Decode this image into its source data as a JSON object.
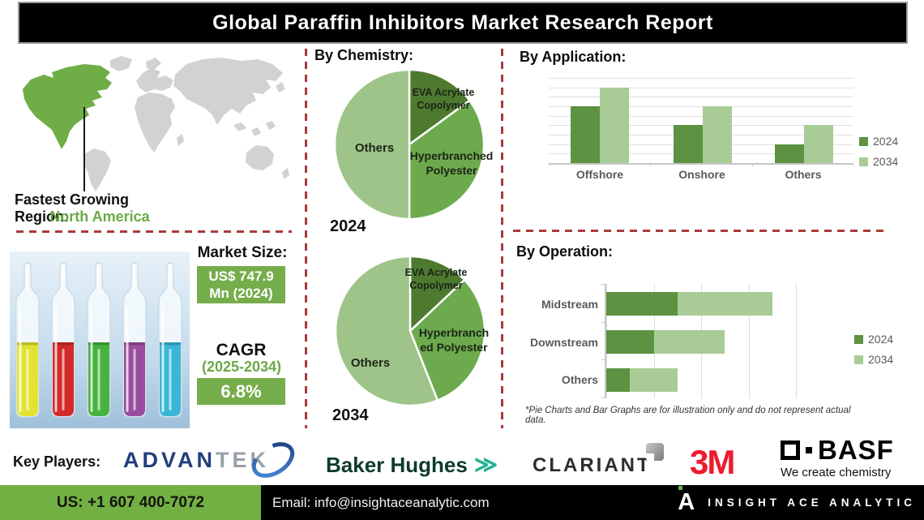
{
  "header": {
    "title": "Global Paraffin Inhibitors Market Research Report"
  },
  "map": {
    "region_label": "Fastest Growing Region:",
    "region_value": "North America"
  },
  "market": {
    "size_label": "Market Size:",
    "size_line1": "US$ 747.9",
    "size_line2": "Mn (2024)",
    "cagr_label": "CAGR",
    "cagr_period": "(2025-2034)",
    "cagr_value": "6.8%"
  },
  "sections": {
    "chemistry_title": "By Chemistry:",
    "application_title": "By Application:",
    "operation_title": "By Operation:"
  },
  "disclaimer": "*Pie Charts and Bar Graphs are for illustration only and do not represent actual data.",
  "key_players": {
    "label": "Key Players:",
    "advantek_part1": "ADVAN",
    "advantek_part2": "TEK",
    "baker_hughes": "Baker Hughes",
    "baker_swoosh": "≫",
    "clariant": "CLARIANT",
    "threem": "3M",
    "basf": "BASF",
    "basf_tagline": "We create chemistry"
  },
  "footer": {
    "phone": "US: +1 607 400-7072",
    "email": "Email: info@insightaceanalytic.com",
    "brand_letter": "A",
    "brand": "INSIGHT ACE ANALYTIC"
  },
  "colors": {
    "dash_red": "#a93b3b",
    "na_green": "#6fae46",
    "map_gray": "#d2d2d2",
    "accent_green": "#6aaa46",
    "box_green": "#76ad4b",
    "pie_dark": "#4e7a2f",
    "pie_mid": "#6caa4d",
    "pie_light": "#9fc489",
    "bar_2024": "#5d9242",
    "bar_2034": "#a9cb96",
    "label_gray": "#595959",
    "footer_green": "#72b043",
    "c3m_red": "#ed1b2d",
    "adv_navy": "#223e7c",
    "adv_gray": "#98a0a8",
    "baker_green": "#0d3b2e",
    "baker_teal": "#25b392",
    "clariant_gray": "#2d2d2d"
  },
  "vial_colors": [
    "#e3e233",
    "#d42a2a",
    "#47b33e",
    "#9a4d9e",
    "#3bb6d8"
  ],
  "chart_data": [
    {
      "id": "chemistry-2024",
      "type": "pie",
      "year": "2024",
      "labels": [
        "EVA Acrylate Copolymer",
        "Hyperbranched Polyester",
        "Others"
      ],
      "values": [
        15,
        35,
        50
      ],
      "label_lines": [
        [
          "EVA Acrylate",
          "Copolymer"
        ],
        [
          "Hyperbranched",
          "Polyester"
        ],
        [
          "Others"
        ]
      ],
      "colors": [
        "#4e7a2f",
        "#6caa4d",
        "#9fc489"
      ]
    },
    {
      "id": "chemistry-2034",
      "type": "pie",
      "year": "2034",
      "labels": [
        "EVA Acrylate Copolymer",
        "Hyperbranched Polyester",
        "Others"
      ],
      "values": [
        13,
        31,
        56
      ],
      "label_lines": [
        [
          "EVA Acrylate",
          "Copolymer"
        ],
        [
          "Hyperbranch",
          "ed Polyester"
        ],
        [
          "Others"
        ]
      ],
      "colors": [
        "#4e7a2f",
        "#6caa4d",
        "#9fc489"
      ]
    },
    {
      "id": "application",
      "type": "bar",
      "categories": [
        "Offshore",
        "Onshore",
        "Others"
      ],
      "series": [
        {
          "name": "2024",
          "color": "#5d9242",
          "values": [
            6,
            4,
            2
          ]
        },
        {
          "name": "2034",
          "color": "#a9cb96",
          "values": [
            8,
            6,
            4
          ]
        }
      ],
      "ylim": [
        0,
        9
      ],
      "grid": true,
      "legend_position": "right"
    },
    {
      "id": "operation",
      "type": "stacked-bar-horizontal",
      "categories": [
        "Midstream",
        "Downstream",
        "Others"
      ],
      "series": [
        {
          "name": "2024",
          "color": "#5d9242",
          "values": [
            1.5,
            1,
            0.5
          ]
        },
        {
          "name": "2034",
          "color": "#a9cb96",
          "values": [
            2,
            1.5,
            1
          ]
        }
      ],
      "xlim": [
        0,
        4
      ],
      "grid": true,
      "legend_position": "right"
    }
  ]
}
